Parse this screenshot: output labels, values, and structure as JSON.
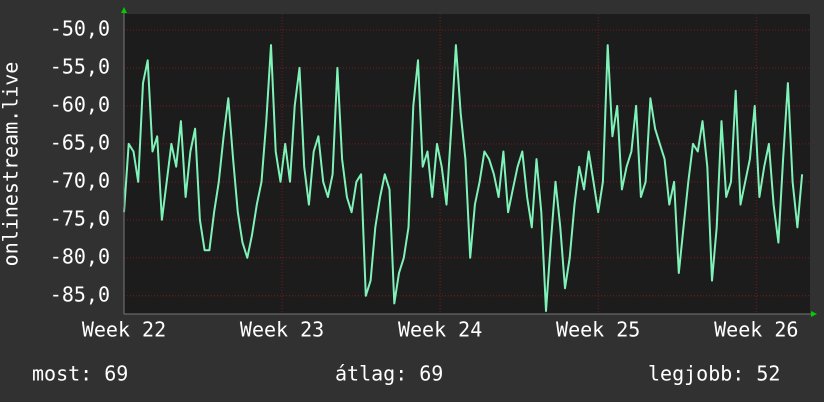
{
  "chart_data": {
    "type": "line",
    "ylabel": "onlinestream.live",
    "x": [
      22,
      22.03,
      22.06,
      22.09,
      22.12,
      22.15,
      22.18,
      22.21,
      22.24,
      22.27,
      22.3,
      22.33,
      22.36,
      22.39,
      22.42,
      22.45,
      22.48,
      22.51,
      22.54,
      22.57,
      22.6,
      22.63,
      22.66,
      22.69,
      22.72,
      22.75,
      22.78,
      22.81,
      22.84,
      22.87,
      22.9,
      22.93,
      22.96,
      22.99,
      23.02,
      23.05,
      23.08,
      23.11,
      23.14,
      23.17,
      23.2,
      23.23,
      23.26,
      23.29,
      23.32,
      23.35,
      23.38,
      23.41,
      23.44,
      23.47,
      23.5,
      23.53,
      23.56,
      23.59,
      23.62,
      23.65,
      23.68,
      23.71,
      23.74,
      23.77,
      23.8,
      23.83,
      23.86,
      23.89,
      23.92,
      23.95,
      23.98,
      24.01,
      24.04,
      24.07,
      24.1,
      24.13,
      24.16,
      24.19,
      24.22,
      24.25,
      24.28,
      24.31,
      24.34,
      24.37,
      24.4,
      24.43,
      24.46,
      24.49,
      24.52,
      24.55,
      24.58,
      24.61,
      24.64,
      24.67,
      24.7,
      24.73,
      24.76,
      24.79,
      24.82,
      24.85,
      24.88,
      24.91,
      24.94,
      24.97,
      25,
      25.03,
      25.06,
      25.09,
      25.12,
      25.15,
      25.18,
      25.21,
      25.24,
      25.27,
      25.3,
      25.33,
      25.36,
      25.39,
      25.42,
      25.45,
      25.48,
      25.51,
      25.54,
      25.57,
      25.6,
      25.63,
      25.66,
      25.69,
      25.72,
      25.75,
      25.78,
      25.81,
      25.84,
      25.87,
      25.9,
      25.93,
      25.96,
      25.99,
      26.02,
      26.05,
      26.08,
      26.11,
      26.14,
      26.17,
      26.2,
      26.23,
      26.26,
      26.29
    ],
    "series": [
      {
        "color": "#7ff2b8",
        "values": [
          -74,
          -65,
          -66,
          -70,
          -57,
          -54,
          -66,
          -64,
          -75,
          -70,
          -65,
          -68,
          -62,
          -72,
          -66,
          -63,
          -75,
          -79,
          -79,
          -74,
          -70,
          -64,
          -59,
          -67,
          -74,
          -78,
          -80,
          -77,
          -73,
          -70,
          -62,
          -52,
          -66,
          -70,
          -65,
          -70,
          -60,
          -55,
          -68,
          -73,
          -66,
          -64,
          -70,
          -72,
          -69,
          -55,
          -67,
          -72,
          -74,
          -70,
          -69,
          -85,
          -83,
          -76,
          -72,
          -69,
          -71,
          -86,
          -82,
          -80,
          -76,
          -60,
          -54,
          -68,
          -66,
          -72,
          -65,
          -68,
          -73,
          -63,
          -52,
          -61,
          -67,
          -80,
          -73,
          -70,
          -66,
          -67,
          -69,
          -72,
          -66,
          -74,
          -71,
          -68,
          -66,
          -72,
          -76,
          -67,
          -74,
          -87,
          -78,
          -70,
          -76,
          -84,
          -80,
          -73,
          -68,
          -71,
          -66,
          -70,
          -74,
          -70,
          -52,
          -64,
          -60,
          -71,
          -68,
          -66,
          -60,
          -72,
          -70,
          -59,
          -63,
          -65,
          -67,
          -73,
          -70,
          -82,
          -76,
          -70,
          -65,
          -66,
          -62,
          -68,
          -83,
          -76,
          -62,
          -72,
          -70,
          -58,
          -73,
          -70,
          -67,
          -60,
          -72,
          -68,
          -65,
          -73,
          -78,
          -67,
          -57,
          -70,
          -76,
          -69
        ]
      }
    ],
    "xlim": [
      22,
      26.34
    ],
    "xticks": [
      {
        "value": 22,
        "label": "Week 22"
      },
      {
        "value": 23,
        "label": "Week 23"
      },
      {
        "value": 24,
        "label": "Week 24"
      },
      {
        "value": 25,
        "label": "Week 25"
      },
      {
        "value": 26,
        "label": "Week 26"
      }
    ],
    "ylim": [
      -87.4,
      -47.9
    ],
    "yticks": [
      {
        "value": -50,
        "label": "-50,0"
      },
      {
        "value": -55,
        "label": "-55,0"
      },
      {
        "value": -60,
        "label": "-60,0"
      },
      {
        "value": -65,
        "label": "-65,0"
      },
      {
        "value": -70,
        "label": "-70,0"
      },
      {
        "value": -75,
        "label": "-75,0"
      },
      {
        "value": -80,
        "label": "-80,0"
      },
      {
        "value": -85,
        "label": "-85,0"
      }
    ],
    "grid": true,
    "stats": [
      {
        "label": "most:",
        "value": 69
      },
      {
        "label": "átlag:",
        "value": 69
      },
      {
        "label": "legjobb:",
        "value": 52
      }
    ]
  }
}
